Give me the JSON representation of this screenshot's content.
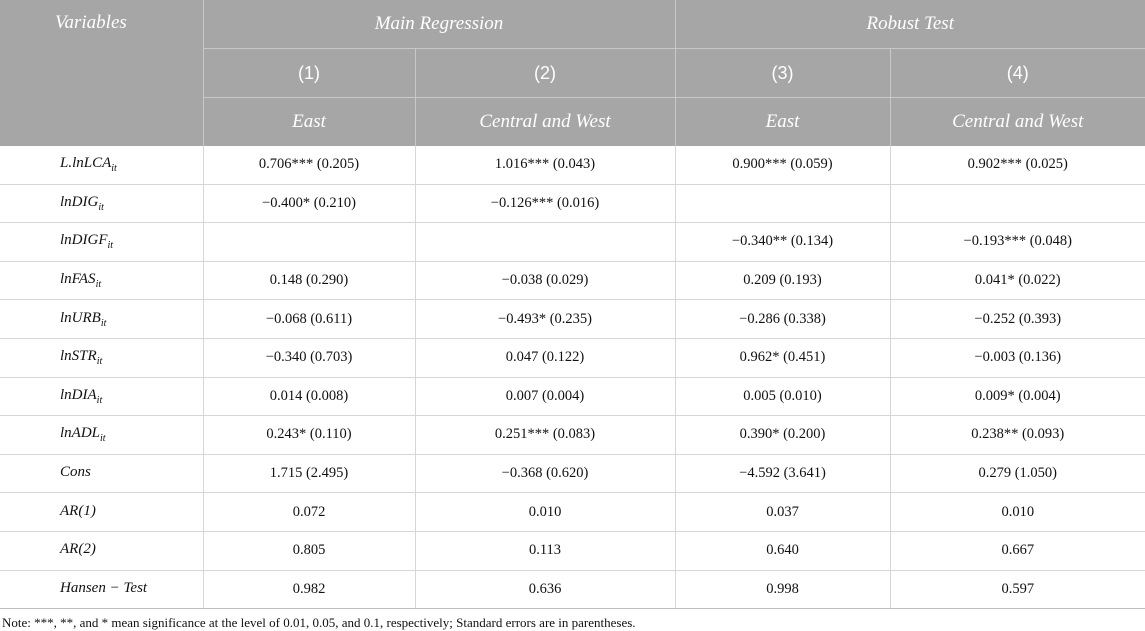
{
  "header": {
    "variables": "Variables",
    "group_main": "Main Regression",
    "group_robust": "Robust Test",
    "col_numbers": [
      "(1)",
      "(2)",
      "(3)",
      "(4)"
    ],
    "col_regions": [
      "East",
      "Central and West",
      "East",
      "Central and West"
    ]
  },
  "rows": [
    {
      "var": "L.lnLCA",
      "sub": "it",
      "cells": [
        "0.706*** (0.205)",
        "1.016*** (0.043)",
        "0.900*** (0.059)",
        "0.902*** (0.025)"
      ]
    },
    {
      "var": "lnDIG",
      "sub": "it",
      "cells": [
        "−0.400* (0.210)",
        "−0.126*** (0.016)",
        "",
        ""
      ]
    },
    {
      "var": "lnDIGF",
      "sub": "it",
      "cells": [
        "",
        "",
        "−0.340** (0.134)",
        "−0.193*** (0.048)"
      ]
    },
    {
      "var": "lnFAS",
      "sub": "it",
      "cells": [
        "0.148 (0.290)",
        "−0.038 (0.029)",
        "0.209 (0.193)",
        "0.041* (0.022)"
      ]
    },
    {
      "var": "lnURB",
      "sub": "it",
      "cells": [
        "−0.068 (0.611)",
        "−0.493* (0.235)",
        "−0.286 (0.338)",
        "−0.252 (0.393)"
      ]
    },
    {
      "var": "lnSTR",
      "sub": "it",
      "cells": [
        "−0.340 (0.703)",
        "0.047 (0.122)",
        "0.962* (0.451)",
        "−0.003 (0.136)"
      ]
    },
    {
      "var": "lnDIA",
      "sub": "it",
      "cells": [
        "0.014 (0.008)",
        "0.007 (0.004)",
        "0.005 (0.010)",
        "0.009* (0.004)"
      ]
    },
    {
      "var": "lnADL",
      "sub": "it",
      "cells": [
        "0.243* (0.110)",
        "0.251*** (0.083)",
        "0.390* (0.200)",
        "0.238** (0.093)"
      ]
    },
    {
      "var": "Cons",
      "sub": "",
      "cells": [
        "1.715 (2.495)",
        "−0.368 (0.620)",
        "−4.592 (3.641)",
        "0.279 (1.050)"
      ]
    },
    {
      "var": "AR(1)",
      "sub": "",
      "cells": [
        "0.072",
        "0.010",
        "0.037",
        "0.010"
      ]
    },
    {
      "var": "AR(2)",
      "sub": "",
      "cells": [
        "0.805",
        "0.113",
        "0.640",
        "0.667"
      ]
    },
    {
      "var": "Hansen − Test",
      "sub": "",
      "cells": [
        "0.982",
        "0.636",
        "0.998",
        "0.597"
      ]
    }
  ],
  "note": "Note: ***, **, and * mean significance at the level of 0.01, 0.05, and 0.1, respectively; Standard errors are in parentheses."
}
